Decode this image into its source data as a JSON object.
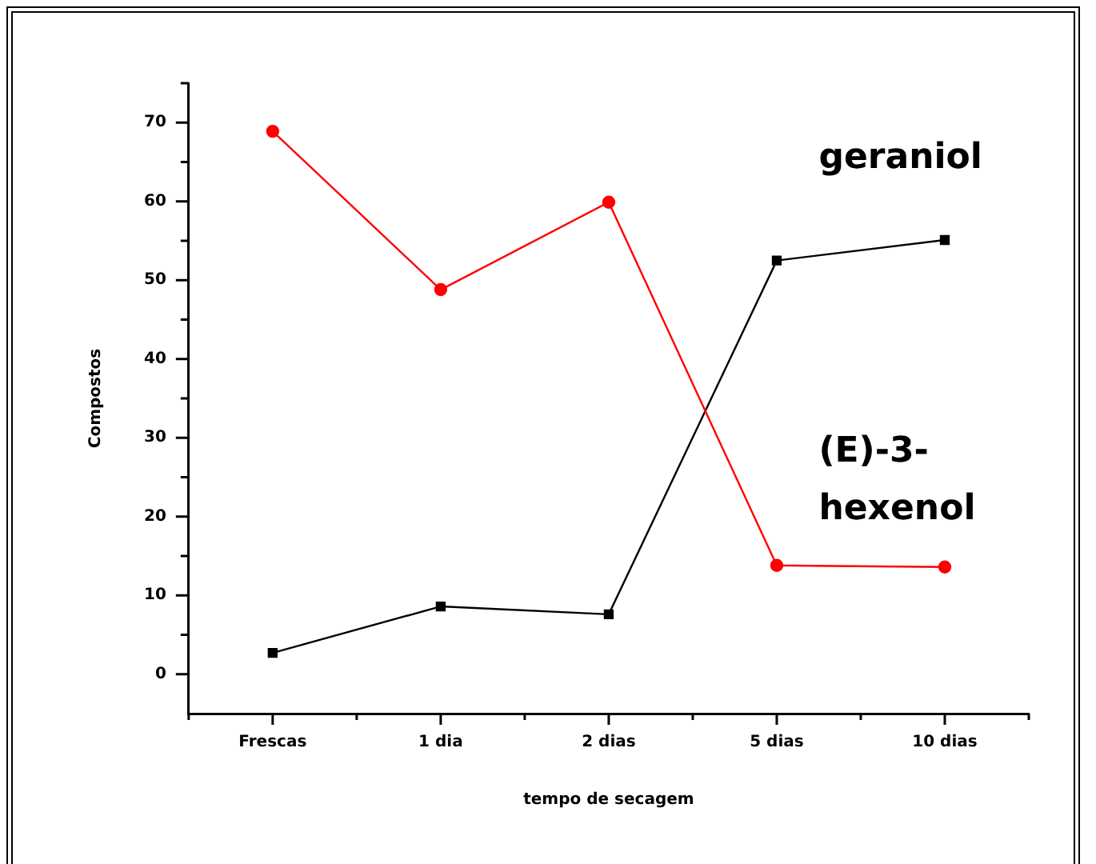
{
  "chart_data": {
    "type": "line",
    "xlabel": "tempo de secagem",
    "ylabel": "Compostos",
    "categories": [
      "Frescas",
      "1 dia",
      "2 dias",
      "5 dias",
      "10 dias"
    ],
    "series": [
      {
        "name": "(E)-3-hexenol",
        "color": "#ff0000",
        "marker": "circle",
        "values": [
          68.9,
          48.8,
          59.9,
          13.8,
          13.6
        ]
      },
      {
        "name": "geraniol",
        "color": "#000000",
        "marker": "square",
        "values": [
          2.7,
          8.6,
          7.6,
          52.5,
          55.1
        ]
      }
    ],
    "ylim": [
      -5,
      75
    ],
    "yticks": [
      0,
      {
        "value": 5,
        "label": null
      },
      10,
      {
        "value": 15,
        "label": null
      },
      20,
      {
        "value": 25,
        "label": null
      },
      30,
      {
        "value": 35,
        "label": null
      },
      40,
      {
        "value": 45,
        "label": null
      },
      50,
      {
        "value": 55,
        "label": null
      },
      60,
      {
        "value": 65,
        "label": null
      },
      70,
      {
        "value": 75,
        "label": null
      }
    ],
    "grid": false,
    "legend": false,
    "line_style": "solid"
  }
}
